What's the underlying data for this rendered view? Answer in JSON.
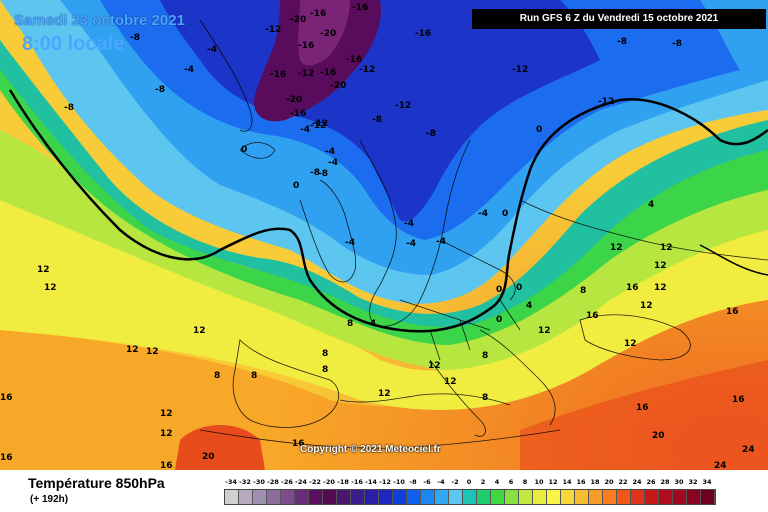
{
  "header": {
    "date": "Samedi 23 octobre 2021",
    "time": "8:00 locale",
    "run": "Run GFS 6 Z du Vendredi 15 octobre 2021"
  },
  "copyright": "Copyright © 2021 Meteociel.fr",
  "footer": {
    "title": "Température 850hPa",
    "subtitle": "(+ 192h)"
  },
  "legend": {
    "ticks": [
      "-34",
      "-32",
      "-30",
      "-28",
      "-26",
      "-24",
      "-22",
      "-20",
      "-18",
      "-16",
      "-14",
      "-12",
      "-10",
      "-8",
      "-6",
      "-4",
      "-2",
      "0",
      "2",
      "4",
      "6",
      "8",
      "10",
      "12",
      "14",
      "16",
      "18",
      "20",
      "22",
      "24",
      "26",
      "28",
      "30",
      "32",
      "34"
    ],
    "colors": [
      "#d0d0d0",
      "#b8a8c0",
      "#a090b0",
      "#8c6c9c",
      "#7c4c8c",
      "#6c2c7c",
      "#5c1060",
      "#540a52",
      "#4a1670",
      "#3a1c8c",
      "#2a1ea8",
      "#1c28c0",
      "#1040d8",
      "#1060ee",
      "#1c86f4",
      "#30a8f4",
      "#5cc6f0",
      "#1cc4b4",
      "#20cc70",
      "#40d840",
      "#88e040",
      "#c0e840",
      "#e8ee40",
      "#f8f448",
      "#f8d838",
      "#f8bc30",
      "#f89c28",
      "#f87c20",
      "#f05818",
      "#e03418",
      "#c81818",
      "#b00c1c",
      "#a00820",
      "#880420",
      "#700020"
    ]
  },
  "map_labels": [
    {
      "t": "-20"
    },
    {
      "t": "-16"
    },
    {
      "t": "-16"
    },
    {
      "t": "-16"
    },
    {
      "t": "-12"
    },
    {
      "t": "-20"
    },
    {
      "t": "-12"
    },
    {
      "t": "-16"
    },
    {
      "t": "-4"
    },
    {
      "t": "-4"
    },
    {
      "t": "-8"
    },
    {
      "t": "-16"
    },
    {
      "t": "-16"
    },
    {
      "t": "-16"
    },
    {
      "t": "-12"
    },
    {
      "t": "-20"
    },
    {
      "t": "-20"
    },
    {
      "t": "-16"
    },
    {
      "t": "-12"
    },
    {
      "t": "-12"
    },
    {
      "t": "-16"
    },
    {
      "t": "-12"
    },
    {
      "t": "-12"
    },
    {
      "t": "-12"
    },
    {
      "t": "-8"
    },
    {
      "t": "-8"
    },
    {
      "t": "-4"
    },
    {
      "t": "-4"
    },
    {
      "t": "-8"
    },
    {
      "t": "-8"
    },
    {
      "t": "-12"
    },
    {
      "t": "-8"
    },
    {
      "t": "-8"
    },
    {
      "t": "-4"
    },
    {
      "t": "-4"
    },
    {
      "t": "-8"
    },
    {
      "t": "-8"
    },
    {
      "t": "0"
    },
    {
      "t": "0"
    },
    {
      "t": "0"
    },
    {
      "t": "-4"
    },
    {
      "t": "-4"
    },
    {
      "t": "-4"
    },
    {
      "t": "-4"
    },
    {
      "t": "0"
    },
    {
      "t": "0"
    },
    {
      "t": "0"
    },
    {
      "t": "4"
    },
    {
      "t": "0"
    },
    {
      "t": "4"
    },
    {
      "t": "8"
    },
    {
      "t": "12"
    },
    {
      "t": "12"
    },
    {
      "t": "12"
    },
    {
      "t": "12"
    },
    {
      "t": "12"
    },
    {
      "t": "8"
    },
    {
      "t": "8"
    },
    {
      "t": "4"
    },
    {
      "t": "8"
    },
    {
      "t": "8"
    },
    {
      "t": "8"
    },
    {
      "t": "8"
    },
    {
      "t": "8"
    },
    {
      "t": "12"
    },
    {
      "t": "12"
    },
    {
      "t": "12"
    },
    {
      "t": "12"
    },
    {
      "t": "12"
    },
    {
      "t": "12"
    },
    {
      "t": "16"
    },
    {
      "t": "12"
    },
    {
      "t": "12"
    },
    {
      "t": "16"
    },
    {
      "t": "12"
    },
    {
      "t": "16"
    },
    {
      "t": "16"
    },
    {
      "t": "12"
    },
    {
      "t": "16"
    },
    {
      "t": "16"
    },
    {
      "t": "16"
    },
    {
      "t": "20"
    },
    {
      "t": "20"
    },
    {
      "t": "24"
    },
    {
      "t": "24"
    },
    {
      "t": "16"
    },
    {
      "t": "12"
    },
    {
      "t": "16"
    },
    {
      "t": "12"
    }
  ]
}
